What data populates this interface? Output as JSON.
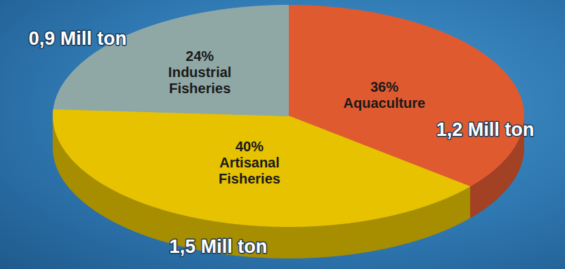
{
  "chart_data": {
    "type": "pie",
    "categories": [
      "Aquaculture",
      "Artisanal Fisheries",
      "Industrial Fisheries"
    ],
    "values": [
      36,
      40,
      24
    ],
    "value_labels": [
      "36%",
      "40%",
      "24%"
    ],
    "colors": [
      "#e05a30",
      "#e6c200",
      "#8fa8a6"
    ],
    "data_labels": true,
    "tonnes_million": [
      1.2,
      1.5,
      0.9
    ],
    "tonnes_labels": [
      "1,2 Mill ton",
      "1,5 Mill ton",
      "0,9 Mill ton"
    ]
  }
}
